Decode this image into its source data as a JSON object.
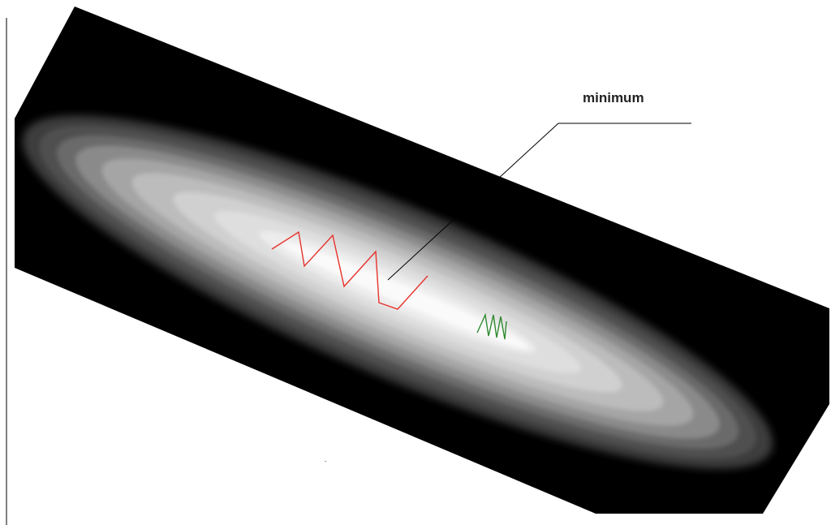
{
  "annotation": {
    "label": "minimum"
  },
  "colors": {
    "background": "#ffffff",
    "dark_band": "#000000",
    "contour_outer": "#3a3a3a",
    "contour_inner": "#f7f7f7",
    "descent_path_red": "#e8322c",
    "descent_path_green": "#2f8a2f",
    "leader_line": "#000000"
  }
}
